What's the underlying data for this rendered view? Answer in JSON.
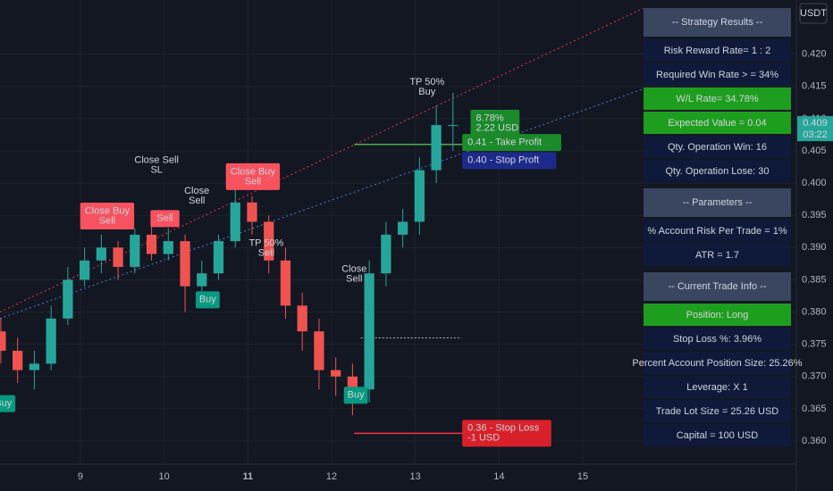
{
  "chart_data": {
    "type": "candlestick",
    "x": [
      8.05,
      8.25,
      8.45,
      8.65,
      8.85,
      9.05,
      9.25,
      9.45,
      9.65,
      9.85,
      10.05,
      10.25,
      10.45,
      10.65,
      10.85,
      11.05,
      11.25,
      11.45,
      11.65,
      11.85,
      12.05,
      12.25,
      12.45,
      12.65,
      12.85,
      13.05,
      13.25,
      13.45
    ],
    "open": [
      0.377,
      0.374,
      0.371,
      0.372,
      0.379,
      0.385,
      0.388,
      0.39,
      0.387,
      0.392,
      0.389,
      0.391,
      0.384,
      0.386,
      0.391,
      0.397,
      0.394,
      0.388,
      0.381,
      0.377,
      0.371,
      0.37,
      0.368,
      0.386,
      0.392,
      0.394,
      0.402,
      0.409
    ],
    "high": [
      0.379,
      0.376,
      0.374,
      0.381,
      0.387,
      0.39,
      0.392,
      0.391,
      0.393,
      0.394,
      0.393,
      0.392,
      0.388,
      0.392,
      0.399,
      0.398,
      0.395,
      0.39,
      0.383,
      0.379,
      0.373,
      0.372,
      0.388,
      0.394,
      0.396,
      0.404,
      0.412,
      0.414
    ],
    "low": [
      0.372,
      0.369,
      0.368,
      0.371,
      0.378,
      0.384,
      0.386,
      0.385,
      0.386,
      0.388,
      0.388,
      0.38,
      0.381,
      0.385,
      0.39,
      0.392,
      0.386,
      0.379,
      0.374,
      0.368,
      0.367,
      0.364,
      0.366,
      0.384,
      0.39,
      0.392,
      0.4,
      0.405
    ],
    "close": [
      0.374,
      0.371,
      0.372,
      0.379,
      0.385,
      0.388,
      0.39,
      0.387,
      0.392,
      0.389,
      0.391,
      0.384,
      0.386,
      0.391,
      0.397,
      0.394,
      0.388,
      0.381,
      0.377,
      0.371,
      0.37,
      0.368,
      0.386,
      0.392,
      0.394,
      0.402,
      0.409,
      0.409
    ],
    "up_color": "#26a69a",
    "down_color": "#ef5350",
    "xlim": [
      8.04,
      17.54
    ],
    "xticks": [
      9,
      10,
      11,
      12,
      13,
      14,
      15
    ],
    "ylim": [
      0.3564,
      0.4284
    ],
    "yticks": [
      {
        "value": 0.36,
        "label": "0.360"
      },
      {
        "value": 0.365,
        "label": "0.365"
      },
      {
        "value": 0.37,
        "label": "0.370"
      },
      {
        "value": 0.375,
        "label": "0.375"
      },
      {
        "value": 0.38,
        "label": "0.380"
      },
      {
        "value": 0.385,
        "label": "0.385"
      },
      {
        "value": 0.39,
        "label": "0.390"
      },
      {
        "value": 0.395,
        "label": "0.395"
      },
      {
        "value": 0.4,
        "label": "0.400"
      },
      {
        "value": 0.405,
        "label": "0.405"
      },
      {
        "value": 0.41,
        "label": "0.410"
      },
      {
        "value": 0.415,
        "label": "0.415"
      },
      {
        "value": 0.42,
        "label": "0.420"
      }
    ],
    "grid": true,
    "currency": "USDT",
    "current_price": {
      "value": 0.409,
      "label": "0.409"
    },
    "countdown": "03:22",
    "trend_lines": [
      {
        "color": "#f23645",
        "x": [
          8.04,
          15.72
        ],
        "y": [
          0.38,
          0.4271
        ]
      },
      {
        "color": "#4a7fd4",
        "x": [
          8.04,
          15.72
        ],
        "y": [
          0.379,
          0.4146
        ]
      }
    ],
    "levels": [
      {
        "color": "#4caf50",
        "x": [
          12.27,
          13.58
        ],
        "y": 0.406,
        "dotted": false
      },
      {
        "color": "#f23645",
        "x": [
          12.27,
          13.58
        ],
        "y": 0.3612,
        "dotted": false
      },
      {
        "color": "#b2b5be",
        "x": [
          12.35,
          13.55
        ],
        "y": 0.376,
        "dotted": true
      }
    ],
    "annotations": [
      {
        "lines": [
          "Close Sell",
          "SL"
        ],
        "x": 9.91,
        "y": 0.4028,
        "kind": "text",
        "color": "#ffffff"
      },
      {
        "lines": [
          "Close Buy",
          "Sell"
        ],
        "x": 9.32,
        "y": 0.3949,
        "kind": "box",
        "color": "#f7525f"
      },
      {
        "lines": [
          "Sell"
        ],
        "x": 10.01,
        "y": 0.3945,
        "kind": "box",
        "color": "#f7525f"
      },
      {
        "lines": [
          "Close",
          "Sell"
        ],
        "x": 10.39,
        "y": 0.398,
        "kind": "text",
        "color": "#ffeb3b"
      },
      {
        "lines": [
          "Close Buy",
          "Sell"
        ],
        "x": 11.06,
        "y": 0.401,
        "kind": "box",
        "color": "#f7525f"
      },
      {
        "lines": [
          "TP 50%",
          "Sell"
        ],
        "x": 11.22,
        "y": 0.3899,
        "kind": "text",
        "color": "#ffeb3b"
      },
      {
        "lines": [
          "Buy"
        ],
        "x": 10.52,
        "y": 0.3819,
        "kind": "box",
        "color": "#089981"
      },
      {
        "lines": [
          "Close",
          "Sell"
        ],
        "x": 12.27,
        "y": 0.3859,
        "kind": "text",
        "color": "#ffeb3b"
      },
      {
        "lines": [
          "Buy"
        ],
        "x": 12.29,
        "y": 0.3671,
        "kind": "box",
        "color": "#089981"
      },
      {
        "lines": [
          "Buy"
        ],
        "x": 8.08,
        "y": 0.3658,
        "kind": "box",
        "color": "#089981"
      },
      {
        "lines": [
          "TP 50%",
          "Buy"
        ],
        "x": 13.14,
        "y": 0.4149,
        "kind": "text",
        "color": "#ffeb3b"
      },
      {
        "lines": [
          "0.41 - Take Profit"
        ],
        "x": 13.56,
        "y": 0.4063,
        "kind": "tag",
        "color": "#1b8a2a"
      },
      {
        "lines": [
          "8.78%",
          "2.22 USD"
        ],
        "x": 13.66,
        "y": 0.4093,
        "kind": "tag",
        "color": "#1b8a2a"
      },
      {
        "lines": [
          "0.40 - Stop Proft"
        ],
        "x": 13.56,
        "y": 0.4035,
        "kind": "tag",
        "color": "#1e2a8a"
      },
      {
        "lines": [
          "0.36 - Stop Loss",
          "-1 USD"
        ],
        "x": 13.56,
        "y": 0.3612,
        "kind": "tag",
        "color": "#d8202a"
      }
    ]
  },
  "panel": {
    "sections": [
      {
        "title": "-- Strategy Results --",
        "rows": [
          {
            "text": "Risk Reward Rate=  1 : 2",
            "highlight": false
          },
          {
            "text": "Required Win Rate >  =  34%",
            "highlight": false
          },
          {
            "text": "W/L Rate=  34.78%",
            "highlight": true
          },
          {
            "text": "Expected Value =  0.04",
            "highlight": true
          },
          {
            "text": "Qty. Operation  Win: 16",
            "highlight": false
          },
          {
            "text": "Qty. Operation  Lose: 30",
            "highlight": false
          }
        ]
      },
      {
        "title": "-- Parameters --",
        "rows": [
          {
            "text": "% Account Risk Per Trade =  1%",
            "highlight": false
          },
          {
            "text": "ATR =  1.7",
            "highlight": false
          }
        ]
      },
      {
        "title": "-- Current Trade Info  --",
        "rows": [
          {
            "text": "Position:  Long",
            "highlight": true
          },
          {
            "text": "Stop Loss %: 3.96%",
            "highlight": false
          },
          {
            "text": "Percent Account Position Size: 25.26%",
            "highlight": false
          },
          {
            "text": "Leverage: X 1",
            "highlight": false
          },
          {
            "text": "Trade Lot Size =  25.26 USD",
            "highlight": false
          },
          {
            "text": "Capital =  100 USD",
            "highlight": false
          }
        ]
      }
    ]
  }
}
